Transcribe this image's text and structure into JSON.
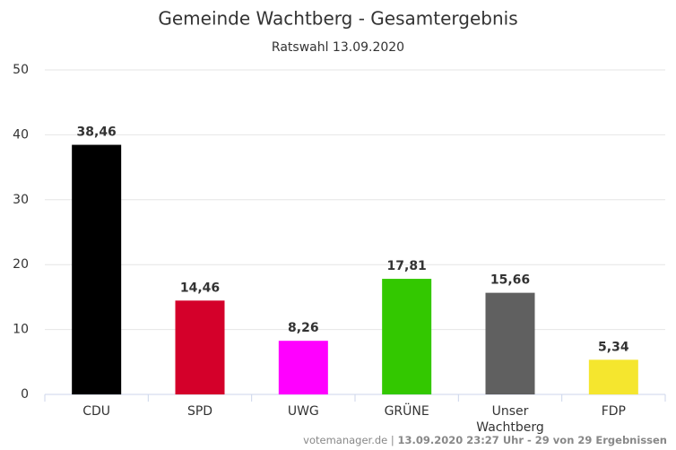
{
  "chart_data": {
    "type": "bar",
    "title": "Gemeinde Wachtberg - Gesamtergebnis",
    "subtitle": "Ratswahl 13.09.2020",
    "categories": [
      "CDU",
      "SPD",
      "UWG",
      "GRÜNE",
      "Unser Wachtberg",
      "FDP"
    ],
    "values": [
      38.46,
      14.46,
      8.26,
      17.81,
      15.66,
      5.34
    ],
    "value_labels": [
      "38,46",
      "14,46",
      "8,26",
      "17,81",
      "15,66",
      "5,34"
    ],
    "colors": [
      "#000000",
      "#d4002a",
      "#ff00ff",
      "#33c800",
      "#606060",
      "#f5e62e"
    ],
    "ylim": [
      0,
      50
    ],
    "yticks": [
      0,
      10,
      20,
      30,
      40,
      50
    ],
    "grid": true,
    "credit": [
      "votemanager.de | ",
      "13.09.2020 23:27 Uhr - 29 von 29 Ergebnissen"
    ]
  }
}
